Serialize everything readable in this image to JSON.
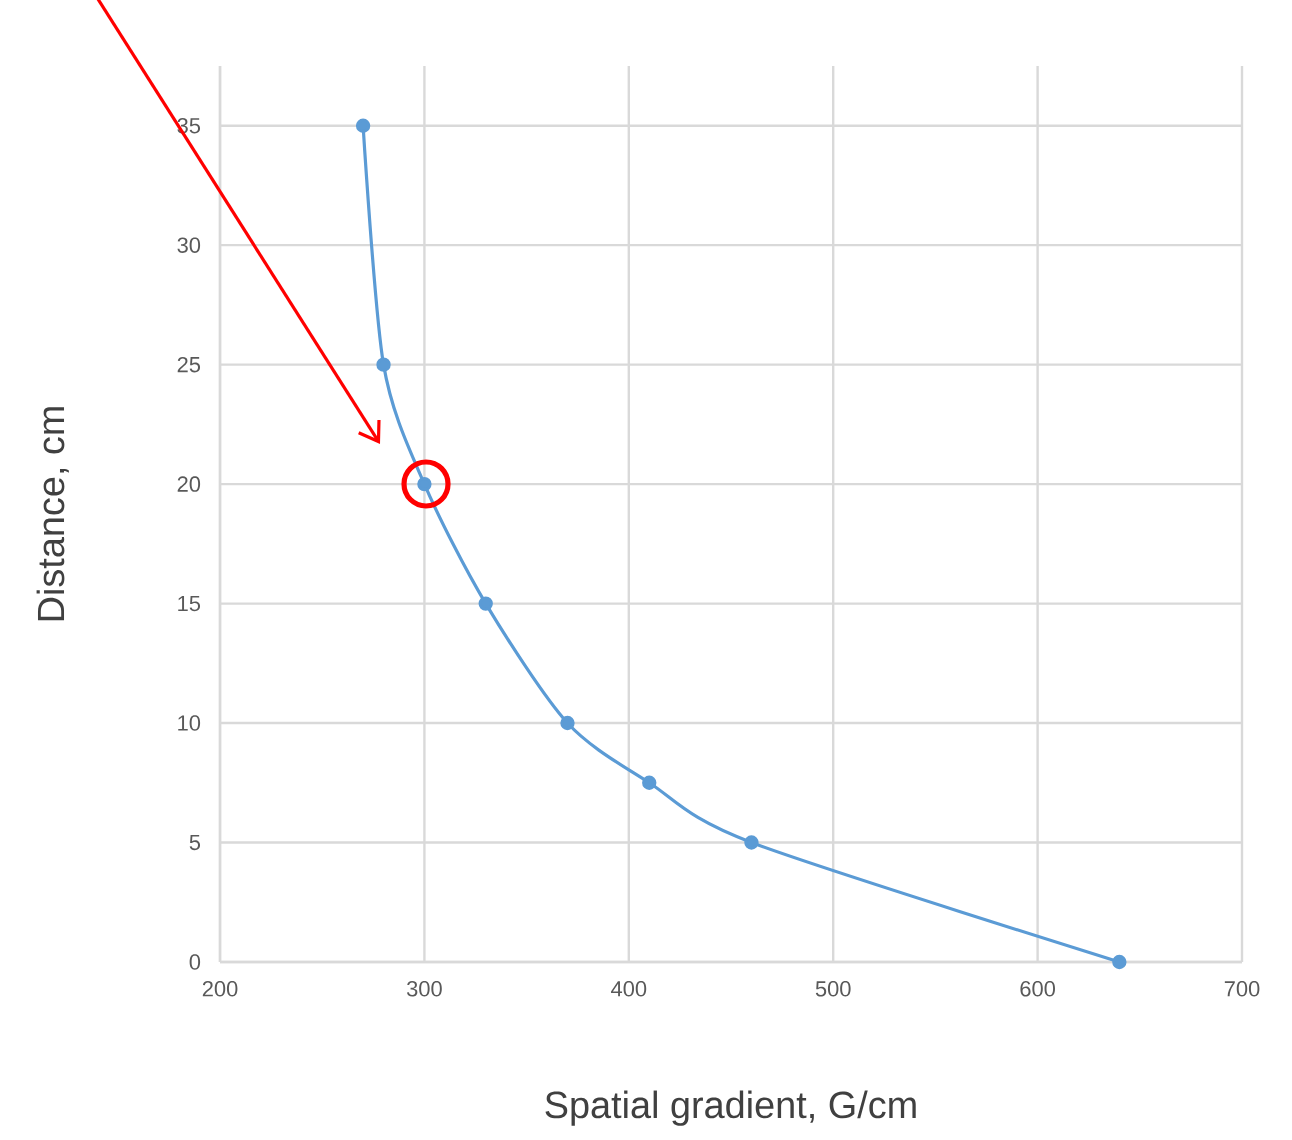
{
  "chart_data": {
    "type": "line",
    "xlabel": "Spatial gradient, G/cm",
    "ylabel": "Distance, cm",
    "x": [
      270,
      280,
      300,
      330,
      370,
      410,
      460,
      640
    ],
    "values": [
      35,
      25,
      20,
      15,
      10,
      7.5,
      5,
      0
    ],
    "color": "#5b9bd5",
    "marker": "circle",
    "line_style": "solid",
    "grid": true,
    "xlim": [
      200,
      700
    ],
    "ylim": [
      0,
      37.5
    ],
    "xticks": [
      200,
      300,
      400,
      500,
      600,
      700
    ],
    "yticks": [
      0,
      5,
      10,
      15,
      20,
      25,
      30,
      35
    ]
  }
}
